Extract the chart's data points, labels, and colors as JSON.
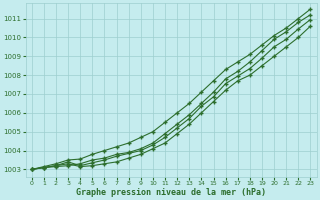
{
  "x": [
    0,
    1,
    2,
    3,
    4,
    5,
    6,
    7,
    8,
    9,
    10,
    11,
    12,
    13,
    14,
    15,
    16,
    17,
    18,
    19,
    20,
    21,
    22,
    23
  ],
  "line1": [
    1003.0,
    1003.1,
    1003.15,
    1003.2,
    1003.3,
    1003.5,
    1003.6,
    1003.8,
    1003.9,
    1004.1,
    1004.4,
    1004.9,
    1005.4,
    1005.9,
    1006.5,
    1007.1,
    1007.8,
    1008.2,
    1008.7,
    1009.3,
    1009.9,
    1010.3,
    1010.8,
    1011.2
  ],
  "line2": [
    1003.0,
    1003.1,
    1003.2,
    1003.3,
    1003.15,
    1003.2,
    1003.3,
    1003.4,
    1003.6,
    1003.8,
    1004.1,
    1004.4,
    1004.9,
    1005.4,
    1006.0,
    1006.6,
    1007.2,
    1007.7,
    1008.0,
    1008.5,
    1009.0,
    1009.5,
    1010.0,
    1010.6
  ],
  "line3": [
    1003.0,
    1003.1,
    1003.2,
    1003.4,
    1003.2,
    1003.35,
    1003.5,
    1003.7,
    1003.85,
    1004.0,
    1004.3,
    1004.7,
    1005.2,
    1005.7,
    1006.35,
    1006.85,
    1007.55,
    1007.95,
    1008.35,
    1008.9,
    1009.5,
    1009.9,
    1010.45,
    1010.95
  ],
  "line_top": [
    1003.0,
    1003.15,
    1003.3,
    1003.5,
    1003.55,
    1003.8,
    1004.0,
    1004.2,
    1004.4,
    1004.7,
    1005.0,
    1005.5,
    1006.0,
    1006.5,
    1007.1,
    1007.7,
    1008.3,
    1008.7,
    1009.1,
    1009.6,
    1010.1,
    1010.5,
    1011.0,
    1011.5
  ],
  "ylim": [
    1002.6,
    1011.8
  ],
  "yticks": [
    1003,
    1004,
    1005,
    1006,
    1007,
    1008,
    1009,
    1010,
    1011
  ],
  "xlim": [
    -0.5,
    23.5
  ],
  "xticks": [
    0,
    1,
    2,
    3,
    4,
    5,
    6,
    7,
    8,
    9,
    10,
    11,
    12,
    13,
    14,
    15,
    16,
    17,
    18,
    19,
    20,
    21,
    22,
    23
  ],
  "xlabel": "Graphe pression niveau de la mer (hPa)",
  "line_color": "#2d6e2d",
  "bg_color": "#c5ecee",
  "grid_color": "#9ecfcf",
  "marker": "+"
}
